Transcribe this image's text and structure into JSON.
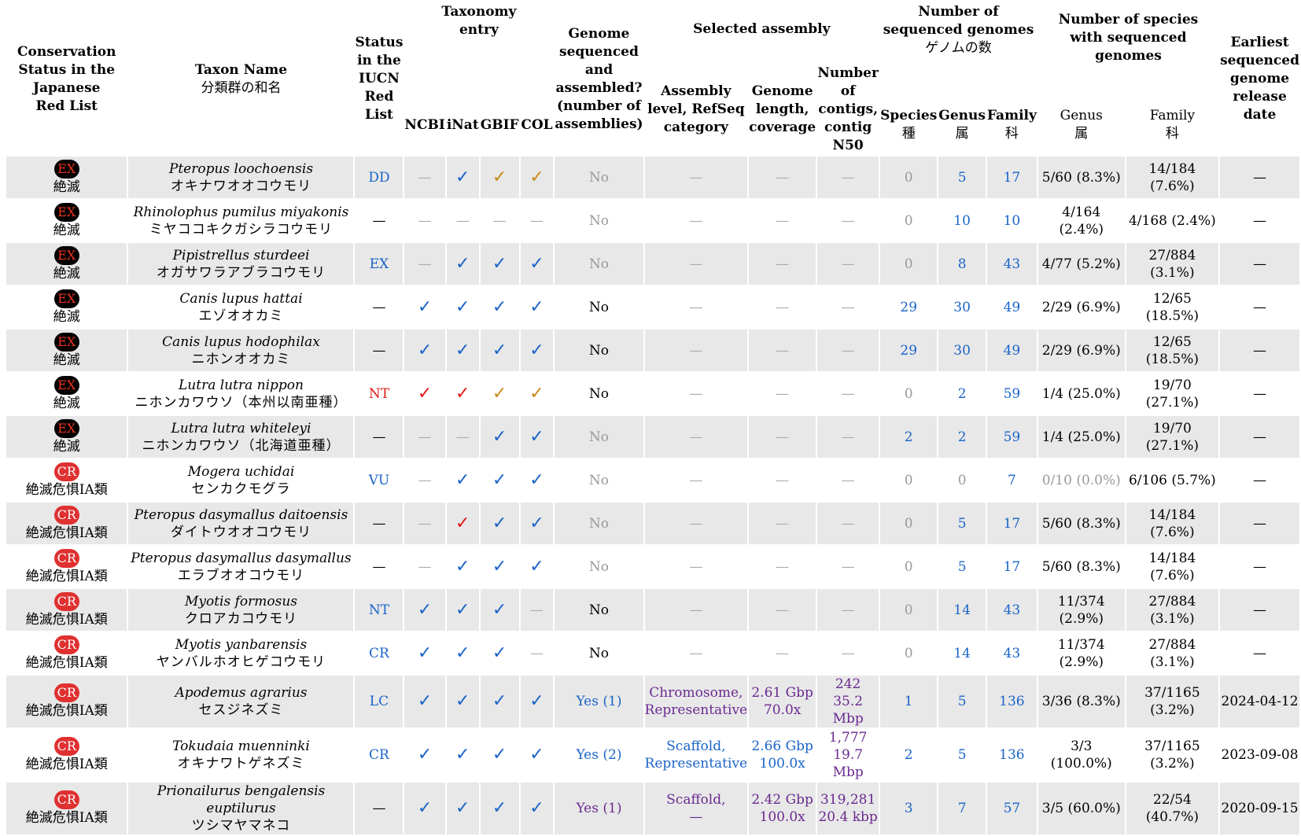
{
  "header": {
    "conservation": "Conservation Status in the Japanese Red List",
    "taxon_name": "Taxon Name",
    "taxon_name_jp": "分類群の和名",
    "iucn": "Status in the IUCN Red List",
    "taxonomy_entry": "Taxonomy entry",
    "ncbi": "NCBI",
    "inat": "iNat",
    "gbif": "GBIF",
    "col": "COL",
    "genome_seq": "Genome sequenced and assembled? (number of assemblies)",
    "selected_assembly": "Selected assembly",
    "assembly_level": "Assembly level, RefSeq category",
    "genome_length": "Genome length, coverage",
    "contigs": "Number of contigs, contig N50",
    "num_seq_genomes": "Number of sequenced genomes",
    "num_seq_genomes_jp": "ゲノムの数",
    "species": "Species",
    "species_jp": "種",
    "genus": "Genus",
    "genus_jp": "属",
    "family": "Family",
    "family_jp": "科",
    "num_species": "Number of species with sequenced genomes",
    "genus2": "Genus",
    "genus2_jp": "属",
    "family2": "Family",
    "family2_jp": "科",
    "earliest": "Earliest sequenced genome release date"
  },
  "rows": [
    {
      "badge": "EX",
      "status_jp": "絶滅",
      "sci": "Pteropus loochoensis",
      "jp": "オキナワオオコウモリ",
      "iucn": "DD",
      "ncbi": "—",
      "inat": "✓",
      "gbif": "✓",
      "col": "✓",
      "genome": "No",
      "asm": "—",
      "len": "—",
      "contigs": "—",
      "sp": "0",
      "gn": "5",
      "fam": "17",
      "genus_ratio": "5/60 (8.3%)",
      "family_ratio": "14/184 (7.6%)",
      "date": "—"
    },
    {
      "badge": "EX",
      "status_jp": "絶滅",
      "sci": "Rhinolophus pumilus miyakonis",
      "jp": "ミヤココキクガシラコウモリ",
      "iucn": "—",
      "ncbi": "—",
      "inat": "—",
      "gbif": "—",
      "col": "—",
      "genome": "No",
      "asm": "—",
      "len": "—",
      "contigs": "—",
      "sp": "0",
      "gn": "10",
      "fam": "10",
      "genus_ratio": "4/164 (2.4%)",
      "family_ratio": "4/168 (2.4%)",
      "date": "—"
    },
    {
      "badge": "EX",
      "status_jp": "絶滅",
      "sci": "Pipistrellus sturdeei",
      "jp": "オガサワラアブラコウモリ",
      "iucn": "EX",
      "ncbi": "—",
      "inat": "✓",
      "gbif": "✓",
      "col": "✓",
      "genome": "No",
      "asm": "—",
      "len": "—",
      "contigs": "—",
      "sp": "0",
      "gn": "8",
      "fam": "43",
      "genus_ratio": "4/77 (5.2%)",
      "family_ratio": "27/884 (3.1%)",
      "date": "—"
    },
    {
      "badge": "EX",
      "status_jp": "絶滅",
      "sci": "Canis lupus hattai",
      "jp": "エゾオオカミ",
      "iucn": "—",
      "ncbi": "✓",
      "inat": "✓",
      "gbif": "✓",
      "col": "✓",
      "genome": "No",
      "asm": "—",
      "len": "—",
      "contigs": "—",
      "sp": "29",
      "gn": "30",
      "fam": "49",
      "genus_ratio": "2/29 (6.9%)",
      "family_ratio": "12/65 (18.5%)",
      "date": "—"
    },
    {
      "badge": "EX",
      "status_jp": "絶滅",
      "sci": "Canis lupus hodophilax",
      "jp": "ニホンオオカミ",
      "iucn": "—",
      "ncbi": "✓",
      "inat": "✓",
      "gbif": "✓",
      "col": "✓",
      "genome": "No",
      "asm": "—",
      "len": "—",
      "contigs": "—",
      "sp": "29",
      "gn": "30",
      "fam": "49",
      "genus_ratio": "2/29 (6.9%)",
      "family_ratio": "12/65 (18.5%)",
      "date": "—"
    },
    {
      "badge": "EX",
      "status_jp": "絶滅",
      "sci": "Lutra lutra nippon",
      "jp": "ニホンカワウソ（本州以南亜種）",
      "iucn": "NT",
      "ncbi": "✓",
      "inat": "✓",
      "gbif": "✓",
      "col": "✓",
      "genome": "No",
      "asm": "—",
      "len": "—",
      "contigs": "—",
      "sp": "0",
      "gn": "2",
      "fam": "59",
      "genus_ratio": "1/4 (25.0%)",
      "family_ratio": "19/70 (27.1%)",
      "date": "—"
    },
    {
      "badge": "EX",
      "status_jp": "絶滅",
      "sci": "Lutra lutra whiteleyi",
      "jp": "ニホンカワウソ（北海道亜種）",
      "iucn": "—",
      "ncbi": "—",
      "inat": "—",
      "gbif": "✓",
      "col": "✓",
      "genome": "No",
      "asm": "—",
      "len": "—",
      "contigs": "—",
      "sp": "2",
      "gn": "2",
      "fam": "59",
      "genus_ratio": "1/4 (25.0%)",
      "family_ratio": "19/70 (27.1%)",
      "date": "—"
    },
    {
      "badge": "CR",
      "status_jp": "絶滅危惧IA類",
      "sci": "Mogera uchidai",
      "jp": "センカクモグラ",
      "iucn": "VU",
      "ncbi": "—",
      "inat": "✓",
      "gbif": "✓",
      "col": "✓",
      "genome": "No",
      "asm": "—",
      "len": "—",
      "contigs": "—",
      "sp": "0",
      "gn": "0",
      "fam": "7",
      "genus_ratio": "0/10 (0.0%)",
      "family_ratio": "6/106 (5.7%)",
      "date": "—"
    },
    {
      "badge": "CR",
      "status_jp": "絶滅危惧IA類",
      "sci": "Pteropus dasymallus daitoensis",
      "jp": "ダイトウオオコウモリ",
      "iucn": "—",
      "ncbi": "—",
      "inat": "✓",
      "gbif": "✓",
      "col": "✓",
      "genome": "No",
      "asm": "—",
      "len": "—",
      "contigs": "—",
      "sp": "0",
      "gn": "5",
      "fam": "17",
      "genus_ratio": "5/60 (8.3%)",
      "family_ratio": "14/184 (7.6%)",
      "date": "—"
    },
    {
      "badge": "CR",
      "status_jp": "絶滅危惧IA類",
      "sci": "Pteropus dasymallus dasymallus",
      "jp": "エラブオオコウモリ",
      "iucn": "—",
      "ncbi": "—",
      "inat": "✓",
      "gbif": "✓",
      "col": "✓",
      "genome": "No",
      "asm": "—",
      "len": "—",
      "contigs": "—",
      "sp": "0",
      "gn": "5",
      "fam": "17",
      "genus_ratio": "5/60 (8.3%)",
      "family_ratio": "14/184 (7.6%)",
      "date": "—"
    },
    {
      "badge": "CR",
      "status_jp": "絶滅危惧IA類",
      "sci": "Myotis formosus",
      "jp": "クロアカコウモリ",
      "iucn": "NT",
      "ncbi": "✓",
      "inat": "✓",
      "gbif": "✓",
      "col": "—",
      "genome": "No",
      "asm": "—",
      "len": "—",
      "contigs": "—",
      "sp": "0",
      "gn": "14",
      "fam": "43",
      "genus_ratio": "11/374 (2.9%)",
      "family_ratio": "27/884 (3.1%)",
      "date": "—"
    },
    {
      "badge": "CR",
      "status_jp": "絶滅危惧IA類",
      "sci": "Myotis yanbarensis",
      "jp": "ヤンバルホオヒゲコウモリ",
      "iucn": "CR",
      "ncbi": "✓",
      "inat": "✓",
      "gbif": "✓",
      "col": "—",
      "genome": "No",
      "asm": "—",
      "len": "—",
      "contigs": "—",
      "sp": "0",
      "gn": "14",
      "fam": "43",
      "genus_ratio": "11/374 (2.9%)",
      "family_ratio": "27/884 (3.1%)",
      "date": "—"
    },
    {
      "badge": "CR",
      "status_jp": "絶滅危惧IA類",
      "sci": "Apodemus agrarius",
      "jp": "セスジネズミ",
      "iucn": "LC",
      "ncbi": "✓",
      "inat": "✓",
      "gbif": "✓",
      "col": "✓",
      "genome": "Yes (1)",
      "asm1": "Chromosome,",
      "asm2": "Representative",
      "len1": "2.61 Gbp",
      "len2": "70.0x",
      "con1": "242",
      "con2": "35.2 Mbp",
      "sp": "1",
      "gn": "5",
      "fam": "136",
      "genus_ratio": "3/36 (8.3%)",
      "family_ratio": "37/1165 (3.2%)",
      "date": "2024-04-12"
    },
    {
      "badge": "CR",
      "status_jp": "絶滅危惧IA類",
      "sci": "Tokudaia muenninki",
      "jp": "オキナワトゲネズミ",
      "iucn": "CR",
      "ncbi": "✓",
      "inat": "✓",
      "gbif": "✓",
      "col": "✓",
      "genome": "Yes (2)",
      "asm1": "Scaffold,",
      "asm2": "Representative",
      "len1": "2.66 Gbp",
      "len2": "100.0x",
      "con1": "1,777",
      "con2": "19.7 Mbp",
      "sp": "2",
      "gn": "5",
      "fam": "136",
      "genus_ratio": "3/3 (100.0%)",
      "family_ratio": "37/1165 (3.2%)",
      "date": "2023-09-08"
    },
    {
      "badge": "CR",
      "status_jp": "絶滅危惧IA類",
      "sci": "Prionailurus bengalensis euptilurus",
      "jp": "ツシマヤマネコ",
      "iucn": "—",
      "ncbi": "✓",
      "inat": "✓",
      "gbif": "✓",
      "col": "✓",
      "genome": "Yes (1)",
      "asm1": "Scaffold,",
      "asm2": "—",
      "len1": "2.42 Gbp",
      "len2": "100.0x",
      "con1": "319,281",
      "con2": "20.4 kbp",
      "sp": "3",
      "gn": "7",
      "fam": "57",
      "genus_ratio": "3/5 (60.0%)",
      "family_ratio": "22/54 (40.7%)",
      "date": "2020-09-15"
    }
  ]
}
